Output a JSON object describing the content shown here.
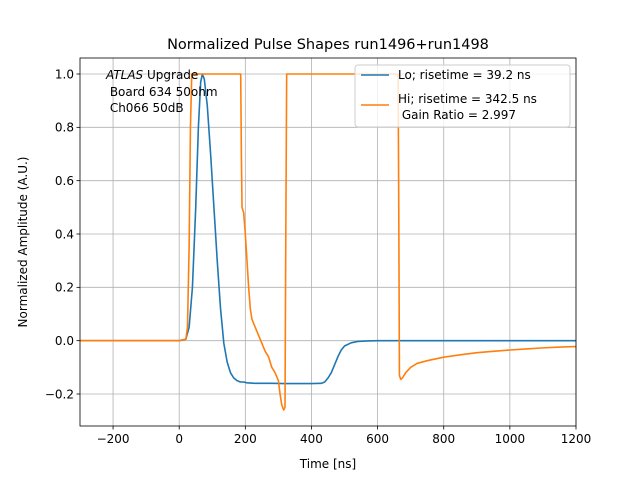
{
  "chart_data": {
    "type": "line",
    "title": "Normalized Pulse Shapes run1496+run1498",
    "xlabel": "Time [ns]",
    "ylabel": "Normalized Amplitude (A.U.)",
    "xlim": [
      -300,
      1200
    ],
    "ylim": [
      -0.32,
      1.06
    ],
    "xticks": [
      -200,
      0,
      200,
      400,
      600,
      800,
      1000,
      1200
    ],
    "xtick_labels": [
      "−200",
      "0",
      "200",
      "400",
      "600",
      "800",
      "1000",
      "1200"
    ],
    "yticks": [
      -0.2,
      0.0,
      0.2,
      0.4,
      0.6,
      0.8,
      1.0
    ],
    "ytick_labels": [
      "−0.2",
      "0.0",
      "0.2",
      "0.4",
      "0.6",
      "0.8",
      "1.0"
    ],
    "grid": true,
    "legend_position": "top-right",
    "annotation": {
      "italic": "ATLAS",
      "line1_rest": " Upgrade",
      "line2": " Board 634 50ohm",
      "line3": " Ch066 50dB"
    },
    "series": [
      {
        "name": "Lo; risetime = 39.2 ns",
        "color": "#1f77b4",
        "points": [
          [
            -300,
            0.0
          ],
          [
            0,
            0.0
          ],
          [
            20,
            0.005
          ],
          [
            30,
            0.05
          ],
          [
            40,
            0.2
          ],
          [
            50,
            0.5
          ],
          [
            58,
            0.8
          ],
          [
            65,
            0.97
          ],
          [
            70,
            1.0
          ],
          [
            76,
            0.98
          ],
          [
            85,
            0.88
          ],
          [
            95,
            0.7
          ],
          [
            105,
            0.5
          ],
          [
            115,
            0.3
          ],
          [
            125,
            0.12
          ],
          [
            135,
            -0.01
          ],
          [
            145,
            -0.08
          ],
          [
            155,
            -0.12
          ],
          [
            165,
            -0.14
          ],
          [
            175,
            -0.15
          ],
          [
            185,
            -0.155
          ],
          [
            195,
            -0.155
          ],
          [
            205,
            -0.158
          ],
          [
            230,
            -0.16
          ],
          [
            280,
            -0.16
          ],
          [
            320,
            -0.161
          ],
          [
            360,
            -0.161
          ],
          [
            400,
            -0.161
          ],
          [
            430,
            -0.16
          ],
          [
            440,
            -0.155
          ],
          [
            450,
            -0.14
          ],
          [
            460,
            -0.12
          ],
          [
            470,
            -0.09
          ],
          [
            480,
            -0.06
          ],
          [
            490,
            -0.035
          ],
          [
            500,
            -0.02
          ],
          [
            520,
            -0.008
          ],
          [
            540,
            -0.003
          ],
          [
            570,
            -0.001
          ],
          [
            600,
            0.0
          ],
          [
            1200,
            0.0
          ]
        ]
      },
      {
        "name": "Hi; risetime = 342.5 ns",
        "color": "#ff7f0e",
        "points": [
          [
            -300,
            0.0
          ],
          [
            0,
            0.0
          ],
          [
            20,
            0.005
          ],
          [
            25,
            0.05
          ],
          [
            30,
            0.35
          ],
          [
            34,
            0.8
          ],
          [
            38,
            1.0
          ],
          [
            186,
            1.0
          ],
          [
            188,
            0.7
          ],
          [
            190,
            0.5
          ],
          [
            195,
            0.48
          ],
          [
            200,
            0.4
          ],
          [
            205,
            0.3
          ],
          [
            210,
            0.2
          ],
          [
            215,
            0.12
          ],
          [
            220,
            0.08
          ],
          [
            230,
            0.05
          ],
          [
            240,
            0.02
          ],
          [
            250,
            -0.01
          ],
          [
            260,
            -0.04
          ],
          [
            270,
            -0.06
          ],
          [
            280,
            -0.1
          ],
          [
            290,
            -0.12
          ],
          [
            300,
            -0.15
          ],
          [
            305,
            -0.2
          ],
          [
            310,
            -0.24
          ],
          [
            316,
            -0.26
          ],
          [
            320,
            -0.25
          ],
          [
            322,
            0.3
          ],
          [
            325,
            1.0
          ],
          [
            662,
            1.0
          ],
          [
            664,
            0.5
          ],
          [
            666,
            -0.13
          ],
          [
            670,
            -0.145
          ],
          [
            675,
            -0.14
          ],
          [
            685,
            -0.12
          ],
          [
            700,
            -0.1
          ],
          [
            720,
            -0.085
          ],
          [
            750,
            -0.075
          ],
          [
            800,
            -0.062
          ],
          [
            850,
            -0.053
          ],
          [
            900,
            -0.045
          ],
          [
            950,
            -0.04
          ],
          [
            1000,
            -0.035
          ],
          [
            1050,
            -0.031
          ],
          [
            1100,
            -0.027
          ],
          [
            1150,
            -0.024
          ],
          [
            1200,
            -0.022
          ]
        ]
      }
    ],
    "extra_legend_line": " Gain Ratio = 2.997"
  }
}
